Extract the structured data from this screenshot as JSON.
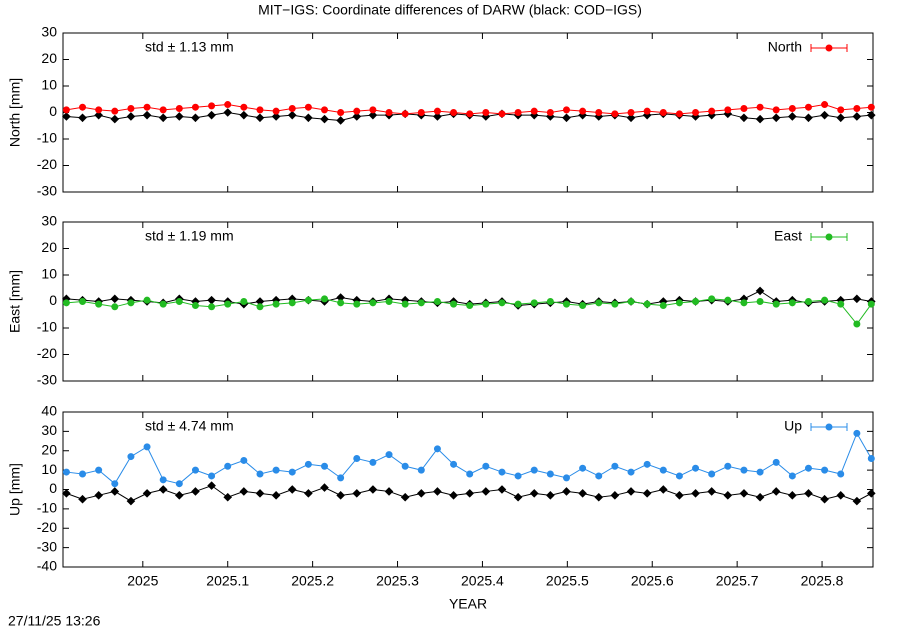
{
  "title": "MIT−IGS: Coordinate differences of DARW (black: COD−IGS)",
  "timestamp": "27/11/25 13:26",
  "chart_data": [
    {
      "type": "line",
      "ylabel": "North [mm]",
      "annotation": "std ± 1.13 mm",
      "annotation_color": "#ff0000",
      "x": [
        2024.91,
        2024.929,
        2024.948,
        2024.967,
        2024.986,
        2025.005,
        2025.024,
        2025.043,
        2025.062,
        2025.081,
        2025.1,
        2025.119,
        2025.138,
        2025.157,
        2025.176,
        2025.195,
        2025.214,
        2025.233,
        2025.252,
        2025.271,
        2025.29,
        2025.309,
        2025.328,
        2025.347,
        2025.366,
        2025.385,
        2025.404,
        2025.423,
        2025.442,
        2025.461,
        2025.48,
        2025.499,
        2025.518,
        2025.537,
        2025.556,
        2025.575,
        2025.594,
        2025.613,
        2025.632,
        2025.651,
        2025.67,
        2025.689,
        2025.708,
        2025.727,
        2025.746,
        2025.765,
        2025.784,
        2025.803,
        2025.822,
        2025.841,
        2025.858
      ],
      "series": [
        {
          "name": "North",
          "color": "#ff0000",
          "marker": "circle",
          "values": [
            1,
            2,
            1,
            0.5,
            1.5,
            2,
            1,
            1.5,
            2,
            2.5,
            3,
            2,
            1,
            0.5,
            1.5,
            2,
            1,
            0,
            0.5,
            1,
            0,
            -0.5,
            0,
            0.5,
            0,
            -0.5,
            0,
            -0.5,
            0,
            0.5,
            0,
            1,
            0.5,
            0,
            -0.5,
            0,
            0.5,
            0,
            -0.5,
            0,
            0.5,
            1,
            1.5,
            2,
            1,
            1.5,
            2,
            3,
            1,
            1.5,
            2
          ]
        },
        {
          "color": "#000000",
          "marker": "diamond",
          "values": [
            -1.5,
            -2,
            -1,
            -2.5,
            -1.5,
            -1,
            -2,
            -1.5,
            -2,
            -1,
            0,
            -1,
            -2,
            -1.5,
            -1,
            -2,
            -2.5,
            -3,
            -1.5,
            -1,
            -1,
            -0.5,
            -1,
            -1.5,
            -0.5,
            -1,
            -1.5,
            -0.5,
            -1,
            -1,
            -1.5,
            -2,
            -1,
            -1.5,
            -1,
            -2,
            -1,
            -0.5,
            -1,
            -1.5,
            -1,
            -0.5,
            -2,
            -2.5,
            -2,
            -1.5,
            -2,
            -1,
            -2,
            -1.5,
            -1
          ]
        }
      ],
      "xlim": [
        2024.906,
        2025.86
      ],
      "xticks": [
        2025,
        2025.1,
        2025.2,
        2025.3,
        2025.4,
        2025.5,
        2025.6,
        2025.7,
        2025.8
      ],
      "ylim": [
        -30,
        30
      ],
      "yticks": [
        -30,
        -20,
        -10,
        0,
        10,
        20,
        30
      ],
      "legend": "top-right"
    },
    {
      "type": "line",
      "ylabel": "East [mm]",
      "annotation": "std ± 1.19 mm",
      "annotation_color": "#22bb22",
      "x": [
        2024.91,
        2024.929,
        2024.948,
        2024.967,
        2024.986,
        2025.005,
        2025.024,
        2025.043,
        2025.062,
        2025.081,
        2025.1,
        2025.119,
        2025.138,
        2025.157,
        2025.176,
        2025.195,
        2025.214,
        2025.233,
        2025.252,
        2025.271,
        2025.29,
        2025.309,
        2025.328,
        2025.347,
        2025.366,
        2025.385,
        2025.404,
        2025.423,
        2025.442,
        2025.461,
        2025.48,
        2025.499,
        2025.518,
        2025.537,
        2025.556,
        2025.575,
        2025.594,
        2025.613,
        2025.632,
        2025.651,
        2025.67,
        2025.689,
        2025.708,
        2025.727,
        2025.746,
        2025.765,
        2025.784,
        2025.803,
        2025.822,
        2025.841,
        2025.858
      ],
      "series": [
        {
          "name": "East",
          "color": "#22bb22",
          "marker": "circle",
          "values": [
            -0.5,
            0,
            -1,
            -2,
            -0.5,
            0.5,
            -1,
            0,
            -1.5,
            -2,
            -1,
            0,
            -2,
            -1,
            -0.5,
            0.5,
            1,
            -0.5,
            -1,
            -0.5,
            0,
            -1,
            -0.5,
            0,
            -1,
            -1.5,
            -1,
            -0.5,
            -1,
            -0.5,
            0,
            -1,
            -1.5,
            -0.5,
            -1,
            0,
            -1,
            -1.5,
            -0.5,
            0,
            1,
            0.5,
            -0.5,
            0,
            -1,
            -0.5,
            0,
            0.5,
            -1,
            -8.5,
            -1
          ]
        },
        {
          "color": "#000000",
          "marker": "diamond",
          "values": [
            1,
            0.5,
            0,
            1,
            0.5,
            0,
            -0.5,
            1,
            0,
            0.5,
            0,
            -1,
            0,
            0.5,
            1,
            0.5,
            0,
            1.5,
            0.5,
            0,
            1,
            0.5,
            0,
            -0.5,
            0,
            -1,
            -0.5,
            0,
            -1.5,
            -1,
            -0.5,
            0,
            -1,
            0,
            -0.5,
            0,
            -1,
            0,
            0.5,
            0,
            0.5,
            0,
            1,
            4,
            0,
            0.5,
            -0.5,
            0,
            0.5,
            1,
            0
          ]
        }
      ],
      "xlim": [
        2024.906,
        2025.86
      ],
      "xticks": [
        2025,
        2025.1,
        2025.2,
        2025.3,
        2025.4,
        2025.5,
        2025.6,
        2025.7,
        2025.8
      ],
      "ylim": [
        -30,
        30
      ],
      "yticks": [
        -30,
        -20,
        -10,
        0,
        10,
        20,
        30
      ],
      "legend": "top-right"
    },
    {
      "type": "line",
      "ylabel": "Up [mm]",
      "xlabel": "YEAR",
      "annotation": "std ± 4.74 mm",
      "annotation_color": "#2a8ce8",
      "x": [
        2024.91,
        2024.929,
        2024.948,
        2024.967,
        2024.986,
        2025.005,
        2025.024,
        2025.043,
        2025.062,
        2025.081,
        2025.1,
        2025.119,
        2025.138,
        2025.157,
        2025.176,
        2025.195,
        2025.214,
        2025.233,
        2025.252,
        2025.271,
        2025.29,
        2025.309,
        2025.328,
        2025.347,
        2025.366,
        2025.385,
        2025.404,
        2025.423,
        2025.442,
        2025.461,
        2025.48,
        2025.499,
        2025.518,
        2025.537,
        2025.556,
        2025.575,
        2025.594,
        2025.613,
        2025.632,
        2025.651,
        2025.67,
        2025.689,
        2025.708,
        2025.727,
        2025.746,
        2025.765,
        2025.784,
        2025.803,
        2025.822,
        2025.841,
        2025.858
      ],
      "series": [
        {
          "name": "Up",
          "color": "#2a8ce8",
          "marker": "circle",
          "values": [
            9,
            8,
            10,
            3,
            17,
            22,
            5,
            3,
            10,
            7,
            12,
            15,
            8,
            10,
            9,
            13,
            12,
            6,
            16,
            14,
            18,
            12,
            10,
            21,
            13,
            8,
            12,
            9,
            7,
            10,
            8,
            6,
            11,
            7,
            12,
            9,
            13,
            10,
            7,
            11,
            8,
            12,
            10,
            9,
            14,
            7,
            11,
            10,
            8,
            29,
            16
          ]
        },
        {
          "color": "#000000",
          "marker": "diamond",
          "values": [
            -2,
            -5,
            -3,
            -1,
            -6,
            -2,
            0,
            -3,
            -1,
            2,
            -4,
            -1,
            -2,
            -3,
            0,
            -2,
            1,
            -3,
            -2,
            0,
            -1,
            -4,
            -2,
            -1,
            -3,
            -2,
            -1,
            0,
            -4,
            -2,
            -3,
            -1,
            -2,
            -4,
            -3,
            -1,
            -2,
            0,
            -3,
            -2,
            -1,
            -3,
            -2,
            -4,
            -1,
            -3,
            -2,
            -5,
            -3,
            -6,
            -2
          ]
        }
      ],
      "xlim": [
        2024.906,
        2025.86
      ],
      "xticks": [
        2025,
        2025.1,
        2025.2,
        2025.3,
        2025.4,
        2025.5,
        2025.6,
        2025.7,
        2025.8
      ],
      "ylim": [
        -40,
        40
      ],
      "yticks": [
        -40,
        -30,
        -20,
        -10,
        0,
        10,
        20,
        30,
        40
      ],
      "legend": "top-right"
    }
  ]
}
